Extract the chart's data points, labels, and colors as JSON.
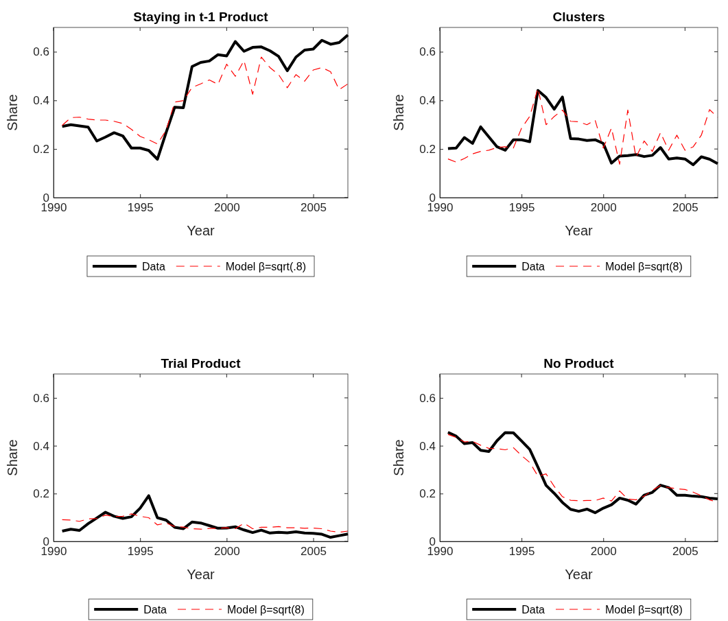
{
  "chart_data": [
    {
      "type": "line",
      "title": "Staying in t-1 Product",
      "xlabel": "Year",
      "ylabel": "Share",
      "legend": "bottom",
      "xlim": [
        1990,
        2007
      ],
      "ylim": [
        0,
        0.7
      ],
      "xticks": [
        1990,
        1995,
        2000,
        2005
      ],
      "yticks": [
        0,
        0.2,
        0.4,
        0.6
      ],
      "x": [
        1990.5,
        1991,
        1991.5,
        1992,
        1992.5,
        1993,
        1993.5,
        1994,
        1994.5,
        1995,
        1995.5,
        1996,
        1996.5,
        1997,
        1997.5,
        1998,
        1998.5,
        1999,
        1999.5,
        2000,
        2000.5,
        2001,
        2001.5,
        2002,
        2002.5,
        2003,
        2003.5,
        2004,
        2004.5,
        2005,
        2005.5,
        2006,
        2006.5,
        2007
      ],
      "series": [
        {
          "name": "Data",
          "color": "#000000",
          "line_style": "solid",
          "values": [
            0.293,
            0.3,
            0.295,
            0.29,
            0.233,
            0.249,
            0.267,
            0.254,
            0.204,
            0.204,
            0.194,
            0.158,
            0.267,
            0.372,
            0.37,
            0.539,
            0.556,
            0.562,
            0.588,
            0.583,
            0.642,
            0.602,
            0.618,
            0.62,
            0.604,
            0.581,
            0.522,
            0.578,
            0.607,
            0.611,
            0.647,
            0.631,
            0.638,
            0.669
          ]
        },
        {
          "name": "Model β=sqrt(.8)",
          "color": "#ff0000",
          "line_style": "dashed",
          "values": [
            0.297,
            0.329,
            0.331,
            0.323,
            0.319,
            0.319,
            0.314,
            0.305,
            0.281,
            0.252,
            0.238,
            0.221,
            0.276,
            0.393,
            0.399,
            0.453,
            0.468,
            0.484,
            0.466,
            0.549,
            0.499,
            0.564,
            0.425,
            0.578,
            0.535,
            0.506,
            0.452,
            0.506,
            0.479,
            0.525,
            0.535,
            0.518,
            0.444,
            0.468
          ]
        }
      ]
    },
    {
      "type": "line",
      "title": "Clusters",
      "xlabel": "Year",
      "ylabel": "Share",
      "legend": "bottom",
      "xlim": [
        1990,
        2007
      ],
      "ylim": [
        0,
        0.7
      ],
      "xticks": [
        1990,
        1995,
        2000,
        2005
      ],
      "yticks": [
        0,
        0.2,
        0.4,
        0.6
      ],
      "x": [
        1990.5,
        1991,
        1991.5,
        1992,
        1992.5,
        1993,
        1993.5,
        1994,
        1994.5,
        1995,
        1995.5,
        1996,
        1996.5,
        1997,
        1997.5,
        1998,
        1998.5,
        1999,
        1999.5,
        2000,
        2000.5,
        2001,
        2001.5,
        2002,
        2002.5,
        2003,
        2003.5,
        2004,
        2004.5,
        2005,
        2005.5,
        2006,
        2006.5,
        2007
      ],
      "series": [
        {
          "name": "Data",
          "color": "#000000",
          "line_style": "solid",
          "values": [
            0.202,
            0.204,
            0.247,
            0.223,
            0.291,
            0.25,
            0.209,
            0.195,
            0.238,
            0.238,
            0.23,
            0.441,
            0.412,
            0.364,
            0.414,
            0.243,
            0.241,
            0.235,
            0.238,
            0.223,
            0.142,
            0.171,
            0.173,
            0.177,
            0.169,
            0.174,
            0.206,
            0.159,
            0.163,
            0.159,
            0.135,
            0.168,
            0.158,
            0.14
          ]
        },
        {
          "name": "Model β=sqrt(8)",
          "color": "#ff0000",
          "line_style": "dashed",
          "values": [
            0.159,
            0.146,
            0.161,
            0.18,
            0.19,
            0.195,
            0.206,
            0.209,
            0.204,
            0.286,
            0.334,
            0.449,
            0.3,
            0.334,
            0.36,
            0.314,
            0.312,
            0.3,
            0.319,
            0.204,
            0.286,
            0.137,
            0.36,
            0.166,
            0.233,
            0.19,
            0.267,
            0.195,
            0.257,
            0.195,
            0.209,
            0.257,
            0.362,
            0.33
          ]
        }
      ]
    },
    {
      "type": "line",
      "title": "Trial Product",
      "xlabel": "Year",
      "ylabel": "Share",
      "legend": "bottom",
      "xlim": [
        1990,
        2007
      ],
      "ylim": [
        0,
        0.7
      ],
      "xticks": [
        1990,
        1995,
        2000,
        2005
      ],
      "yticks": [
        0,
        0.2,
        0.4,
        0.6
      ],
      "x": [
        1990.5,
        1991,
        1991.5,
        1992,
        1992.5,
        1993,
        1993.5,
        1994,
        1994.5,
        1995,
        1995.5,
        1996,
        1996.5,
        1997,
        1997.5,
        1998,
        1998.5,
        1999,
        1999.5,
        2000,
        2000.5,
        2001,
        2001.5,
        2002,
        2002.5,
        2003,
        2003.5,
        2004,
        2004.5,
        2005,
        2005.5,
        2006,
        2006.5,
        2007
      ],
      "series": [
        {
          "name": "Data",
          "color": "#000000",
          "line_style": "solid",
          "values": [
            0.043,
            0.051,
            0.046,
            0.074,
            0.098,
            0.122,
            0.105,
            0.096,
            0.103,
            0.139,
            0.191,
            0.099,
            0.089,
            0.059,
            0.053,
            0.081,
            0.077,
            0.066,
            0.055,
            0.056,
            0.061,
            0.048,
            0.037,
            0.047,
            0.035,
            0.038,
            0.036,
            0.04,
            0.035,
            0.034,
            0.03,
            0.017,
            0.024,
            0.031
          ]
        },
        {
          "name": "Model β=sqrt(8)",
          "color": "#ff0000",
          "line_style": "dashed",
          "values": [
            0.091,
            0.089,
            0.084,
            0.094,
            0.096,
            0.11,
            0.104,
            0.105,
            0.115,
            0.105,
            0.099,
            0.069,
            0.077,
            0.062,
            0.06,
            0.053,
            0.051,
            0.054,
            0.055,
            0.057,
            0.053,
            0.076,
            0.053,
            0.059,
            0.059,
            0.062,
            0.057,
            0.057,
            0.055,
            0.056,
            0.053,
            0.043,
            0.038,
            0.043
          ]
        }
      ]
    },
    {
      "type": "line",
      "title": "No Product",
      "xlabel": "Year",
      "ylabel": "Share",
      "legend": "bottom",
      "xlim": [
        1990,
        2007
      ],
      "ylim": [
        0,
        0.7
      ],
      "xticks": [
        1990,
        1995,
        2000,
        2005
      ],
      "yticks": [
        0,
        0.2,
        0.4,
        0.6
      ],
      "x": [
        1990.5,
        1991,
        1991.5,
        1992,
        1992.5,
        1993,
        1993.5,
        1994,
        1994.5,
        1995,
        1995.5,
        1996,
        1996.5,
        1997,
        1997.5,
        1998,
        1998.5,
        1999,
        1999.5,
        2000,
        2000.5,
        2001,
        2001.5,
        2002,
        2002.5,
        2003,
        2003.5,
        2004,
        2004.5,
        2005,
        2005.5,
        2006,
        2006.5,
        2007
      ],
      "series": [
        {
          "name": "Data",
          "color": "#000000",
          "line_style": "solid",
          "values": [
            0.456,
            0.44,
            0.409,
            0.413,
            0.381,
            0.376,
            0.421,
            0.455,
            0.454,
            0.42,
            0.385,
            0.311,
            0.234,
            0.201,
            0.163,
            0.134,
            0.126,
            0.135,
            0.12,
            0.139,
            0.153,
            0.181,
            0.172,
            0.156,
            0.193,
            0.205,
            0.235,
            0.225,
            0.193,
            0.193,
            0.189,
            0.187,
            0.181,
            0.178
          ]
        },
        {
          "name": "Model β=sqrt(8)",
          "color": "#ff0000",
          "line_style": "dashed",
          "values": [
            0.447,
            0.435,
            0.416,
            0.418,
            0.402,
            0.389,
            0.388,
            0.383,
            0.392,
            0.359,
            0.33,
            0.273,
            0.282,
            0.23,
            0.187,
            0.172,
            0.17,
            0.171,
            0.171,
            0.181,
            0.169,
            0.211,
            0.177,
            0.174,
            0.189,
            0.213,
            0.234,
            0.225,
            0.22,
            0.217,
            0.206,
            0.191,
            0.174,
            0.163
          ]
        }
      ]
    }
  ]
}
